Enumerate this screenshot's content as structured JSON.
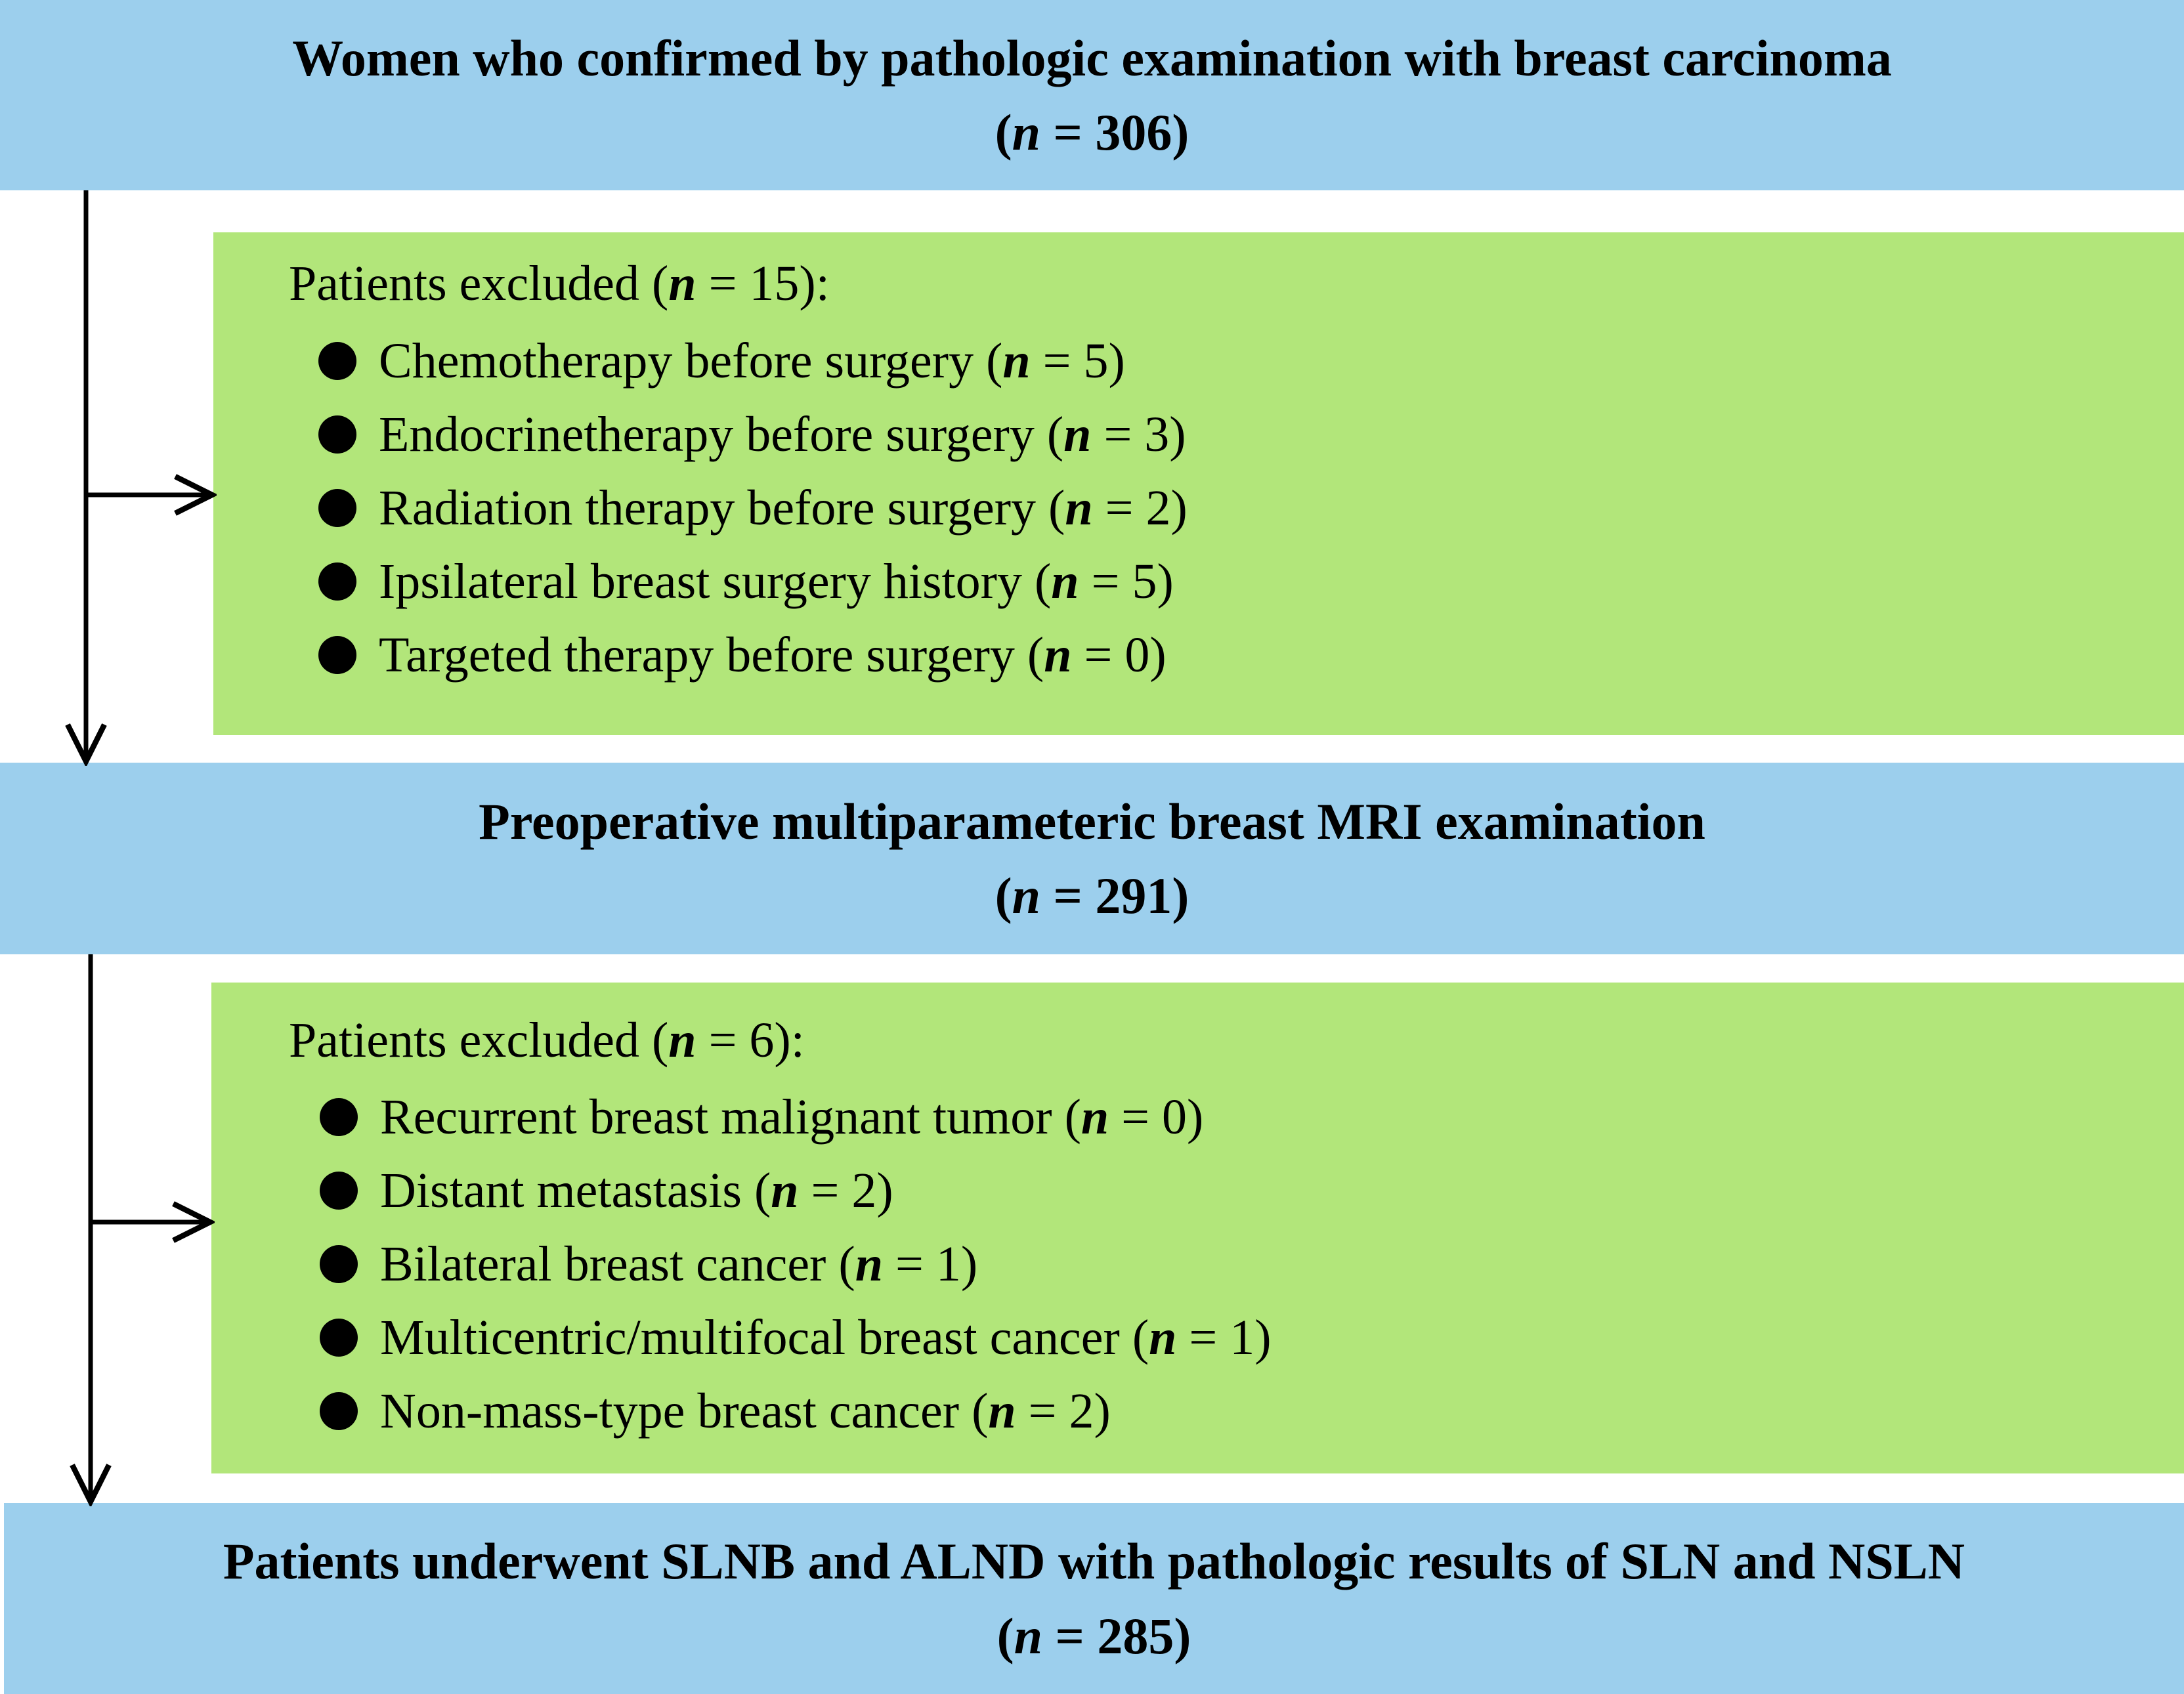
{
  "colors": {
    "stage_box": "#9ccfed",
    "exclusion_box": "#b2e67a",
    "arrow": "#000000"
  },
  "stage1": {
    "title": "Women who confirmed by pathologic examination with breast carcinoma",
    "count": "(n = 306)"
  },
  "exclusion1": {
    "title": "Patients excluded (n = 15):",
    "items": [
      "Chemotherapy before surgery (n = 5)",
      "Endocrinetherapy before surgery (n = 3)",
      "Radiation therapy before surgery (n = 2)",
      "Ipsilateral breast surgery history (n = 5)",
      "Targeted therapy before surgery (n = 0)"
    ]
  },
  "stage2": {
    "title": "Preoperative multiparameteric breast MRI examination",
    "count": "(n = 291)"
  },
  "exclusion2": {
    "title": "Patients excluded (n = 6):",
    "items": [
      "Recurrent breast malignant tumor (n = 0)",
      "Distant metastasis (n = 2)",
      "Bilateral breast cancer (n = 1)",
      "Multicentric/multifocal breast cancer (n = 1)",
      "Non-mass-type breast cancer (n = 2)"
    ]
  },
  "stage3": {
    "title": "Patients underwent SLNB and ALND with pathologic results of SLN and NSLN",
    "count": "(n = 285)"
  }
}
